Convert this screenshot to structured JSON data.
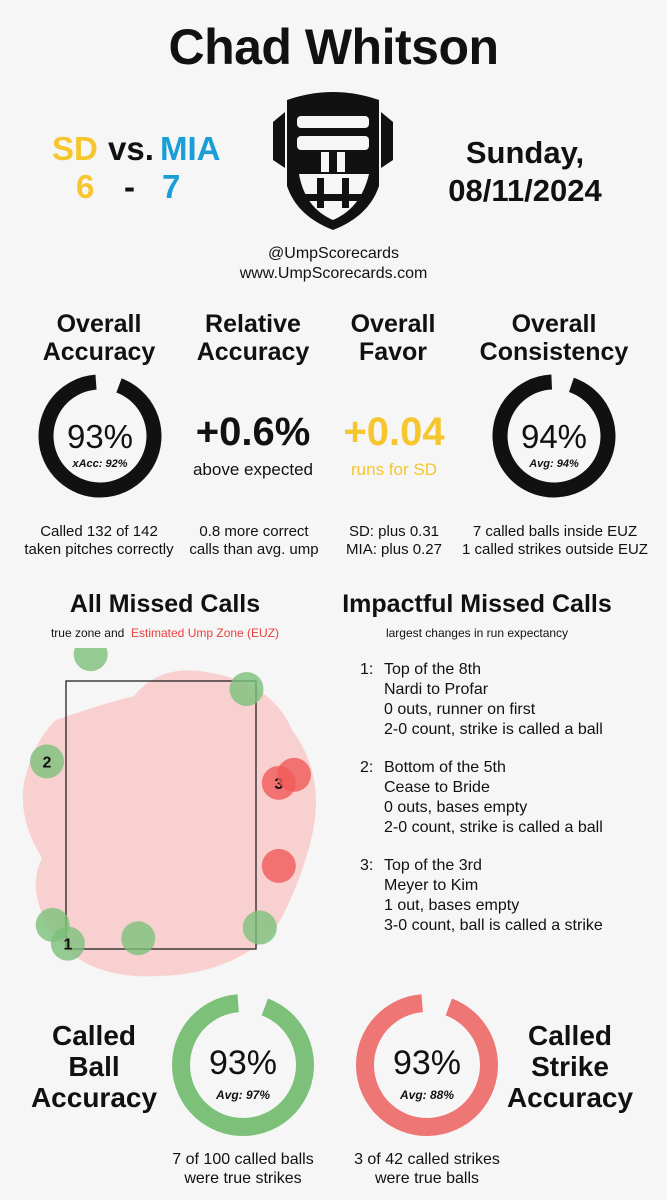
{
  "title": "Chad Whitson",
  "game": {
    "away_team": "SD",
    "vs_label": "vs.",
    "home_team": "MIA",
    "away_score": "6",
    "dash": "-",
    "home_score": "7",
    "date_line1": "Sunday,",
    "date_line2": "08/11/2024"
  },
  "credits": {
    "handle": "@UmpScorecards",
    "site": "www.UmpScorecards.com"
  },
  "stats": {
    "overall_accuracy": {
      "head1": "Overall",
      "head2": "Accuracy",
      "value": "93%",
      "sub": "xAcc: 92%",
      "pct": 93,
      "note1": "Called 132 of 142",
      "note2": "taken pitches correctly"
    },
    "relative_accuracy": {
      "head1": "Relative",
      "head2": "Accuracy",
      "value": "+0.6%",
      "sub": "above expected",
      "note1": "0.8 more correct",
      "note2": "calls than avg. ump"
    },
    "overall_favor": {
      "head1": "Overall",
      "head2": "Favor",
      "value": "+0.04",
      "sub": "runs for SD",
      "note1": "SD: plus 0.31",
      "note2": "MIA: plus 0.27"
    },
    "overall_consistency": {
      "head1": "Overall",
      "head2": "Consistency",
      "value": "94%",
      "sub": "Avg: 94%",
      "pct": 94,
      "note1": "7 called balls inside EUZ",
      "note2": "1 called strikes outside EUZ"
    }
  },
  "missed_calls": {
    "head": "All Missed Calls",
    "sub_plain": "true zone and",
    "sub_red": "Estimated Ump Zone (EUZ)",
    "points": [
      {
        "label": "",
        "kind": "ball",
        "x": 0.13,
        "y": -0.1
      },
      {
        "label": "",
        "kind": "ball",
        "x": 0.95,
        "y": 0.03
      },
      {
        "label": "2",
        "kind": "ball",
        "x": -0.1,
        "y": 0.3
      },
      {
        "label": "3",
        "kind": "strike",
        "x": 1.12,
        "y": 0.38
      },
      {
        "label": "",
        "kind": "strike",
        "x": 1.2,
        "y": 0.35
      },
      {
        "label": "",
        "kind": "strike",
        "x": 1.12,
        "y": 0.69
      },
      {
        "label": "",
        "kind": "ball",
        "x": -0.07,
        "y": 0.91
      },
      {
        "label": "1",
        "kind": "ball",
        "x": 0.01,
        "y": 0.98
      },
      {
        "label": "",
        "kind": "ball",
        "x": 0.38,
        "y": 0.96
      },
      {
        "label": "",
        "kind": "ball",
        "x": 1.02,
        "y": 0.92
      }
    ]
  },
  "impactful": {
    "head": "Impactful Missed Calls",
    "sub": "largest changes in run expectancy",
    "items": [
      {
        "num": "1:",
        "line1": "Top of the 8th",
        "line2": "Nardi to Profar",
        "line3": "0 outs, runner on first",
        "line4": "2-0 count, strike is called a ball"
      },
      {
        "num": "2:",
        "line1": "Bottom of the 5th",
        "line2": "Cease to Bride",
        "line3": "0 outs, bases empty",
        "line4": "2-0 count, strike is called a ball"
      },
      {
        "num": "3:",
        "line1": "Top of the 3rd",
        "line2": "Meyer to Kim",
        "line3": "1 out, bases empty",
        "line4": "3-0 count, ball is called a strike"
      }
    ]
  },
  "called_ball": {
    "head1": "Called",
    "head2": "Ball",
    "head3": "Accuracy",
    "value": "93%",
    "sub": "Avg: 97%",
    "pct": 93,
    "note1": "7 of 100 called balls",
    "note2": "were true strikes"
  },
  "called_strike": {
    "head1": "Called",
    "head2": "Strike",
    "head3": "Accuracy",
    "value": "93%",
    "sub": "Avg: 88%",
    "pct": 93,
    "note1": "3 of 42 called strikes",
    "note2": "were true balls"
  },
  "colors": {
    "sd": "#f5c62e",
    "mia": "#1a9ed8",
    "ball_green": "#7cc07a",
    "strike_red": "#ee7674",
    "euz_fill": "#f9c9c9"
  }
}
